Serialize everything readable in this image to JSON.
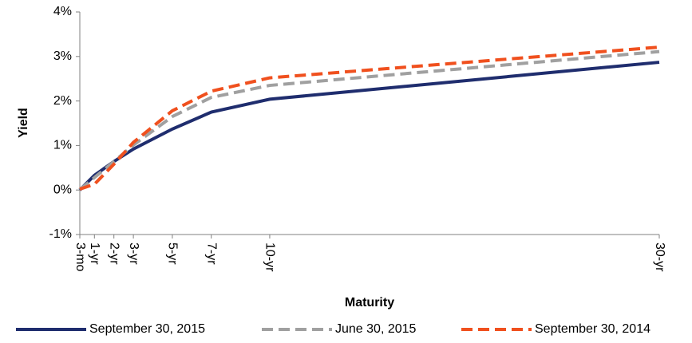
{
  "chart_data": {
    "type": "line",
    "x_label": "Maturity",
    "y_label": "Yield",
    "x": [
      0.25,
      1,
      2,
      3,
      5,
      7,
      10,
      30
    ],
    "xlim": [
      0.25,
      30
    ],
    "xticks": [
      {
        "value": 0.25,
        "label": "3-mo"
      },
      {
        "value": 1,
        "label": "1-yr"
      },
      {
        "value": 2,
        "label": "2-yr"
      },
      {
        "value": 3,
        "label": "3-yr"
      },
      {
        "value": 5,
        "label": "5-yr"
      },
      {
        "value": 7,
        "label": "7-yr"
      },
      {
        "value": 10,
        "label": "10-yr"
      },
      {
        "value": 30,
        "label": "30-yr"
      }
    ],
    "ylim": [
      -1,
      4
    ],
    "yticks": [
      {
        "value": -1,
        "label": "-1%"
      },
      {
        "value": 0,
        "label": "0%"
      },
      {
        "value": 1,
        "label": "1%"
      },
      {
        "value": 2,
        "label": "2%"
      },
      {
        "value": 3,
        "label": "3%"
      },
      {
        "value": 4,
        "label": "4%"
      }
    ],
    "grid": false,
    "legend": "bottom",
    "series": [
      {
        "name": "September 30, 2015",
        "color": "#1f2d6e",
        "dashed": false,
        "values": [
          0.0,
          0.33,
          0.64,
          0.92,
          1.37,
          1.75,
          2.04,
          2.87
        ]
      },
      {
        "name": "June 30, 2015",
        "color": "#a0a0a0",
        "dashed": true,
        "values": [
          0.01,
          0.28,
          0.64,
          1.01,
          1.65,
          2.08,
          2.35,
          3.11
        ]
      },
      {
        "name": "September 30, 2014",
        "color": "#f0501e",
        "dashed": true,
        "values": [
          0.02,
          0.13,
          0.58,
          1.07,
          1.78,
          2.22,
          2.52,
          3.21
        ]
      }
    ]
  }
}
